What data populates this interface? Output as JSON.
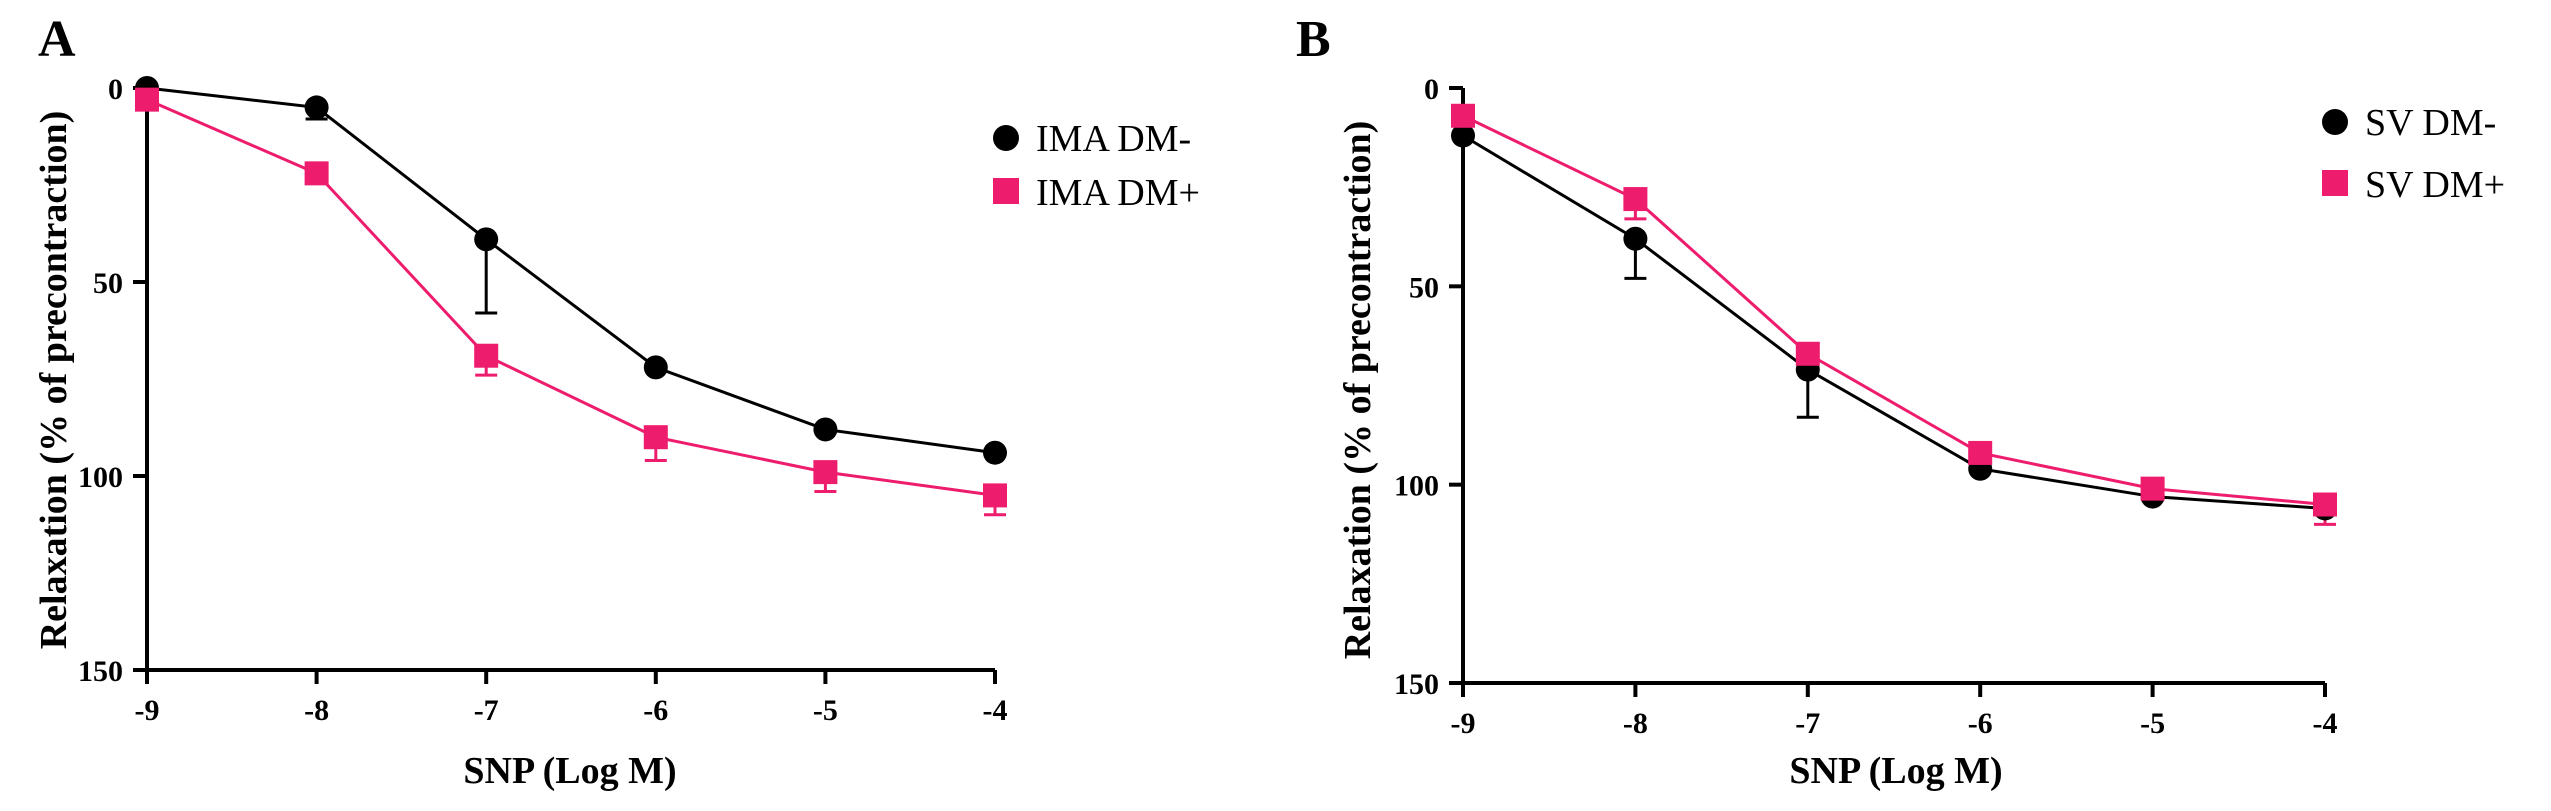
{
  "chart_data": [
    {
      "panel": "A",
      "type": "line",
      "xlabel": "SNP (Log M)",
      "ylabel": "Relaxation (% of precontraction)",
      "x_ticks": [
        "-9",
        "-8",
        "-7",
        "-6",
        "-5",
        "-4"
      ],
      "y_ticks": [
        "0",
        "50",
        "100",
        "150"
      ],
      "xlim": [
        -9,
        -4
      ],
      "ylim": [
        0,
        150
      ],
      "y_inverted": true,
      "legend_position": "top-right",
      "series": [
        {
          "name": "IMA DM-",
          "color": "#000000",
          "marker": "circle",
          "x": [
            -9,
            -8,
            -7,
            -6,
            -5,
            -4
          ],
          "y": [
            0,
            5,
            39,
            72,
            88,
            94
          ],
          "err": [
            0,
            3,
            19,
            0,
            0,
            0
          ]
        },
        {
          "name": "IMA DM+",
          "color": "#ee1c6c",
          "marker": "square",
          "x": [
            -9,
            -8,
            -7,
            -6,
            -5,
            -4
          ],
          "y": [
            3,
            22,
            69,
            90,
            99,
            105
          ],
          "err": [
            0,
            0,
            5,
            6,
            5,
            5
          ]
        }
      ]
    },
    {
      "panel": "B",
      "type": "line",
      "xlabel": "SNP (Log M)",
      "ylabel": "Relaxation (% of precontraction)",
      "x_ticks": [
        "-9",
        "-8",
        "-7",
        "-6",
        "-5",
        "-4"
      ],
      "y_ticks": [
        "0",
        "50",
        "100",
        "150"
      ],
      "xlim": [
        -9,
        -4
      ],
      "ylim": [
        0,
        150
      ],
      "y_inverted": true,
      "legend_position": "top-right",
      "series": [
        {
          "name": "SV DM-",
          "color": "#000000",
          "marker": "circle",
          "x": [
            -9,
            -8,
            -7,
            -6,
            -5,
            -4
          ],
          "y": [
            12,
            38,
            71,
            96,
            103,
            106
          ],
          "err": [
            0,
            10,
            12,
            0,
            0,
            0
          ]
        },
        {
          "name": "SV DM+",
          "color": "#ee1c6c",
          "marker": "square",
          "x": [
            -9,
            -8,
            -7,
            -6,
            -5,
            -4
          ],
          "y": [
            7,
            28,
            67,
            92,
            101,
            105
          ],
          "err": [
            0,
            5,
            0,
            0,
            3,
            5
          ]
        }
      ]
    }
  ]
}
